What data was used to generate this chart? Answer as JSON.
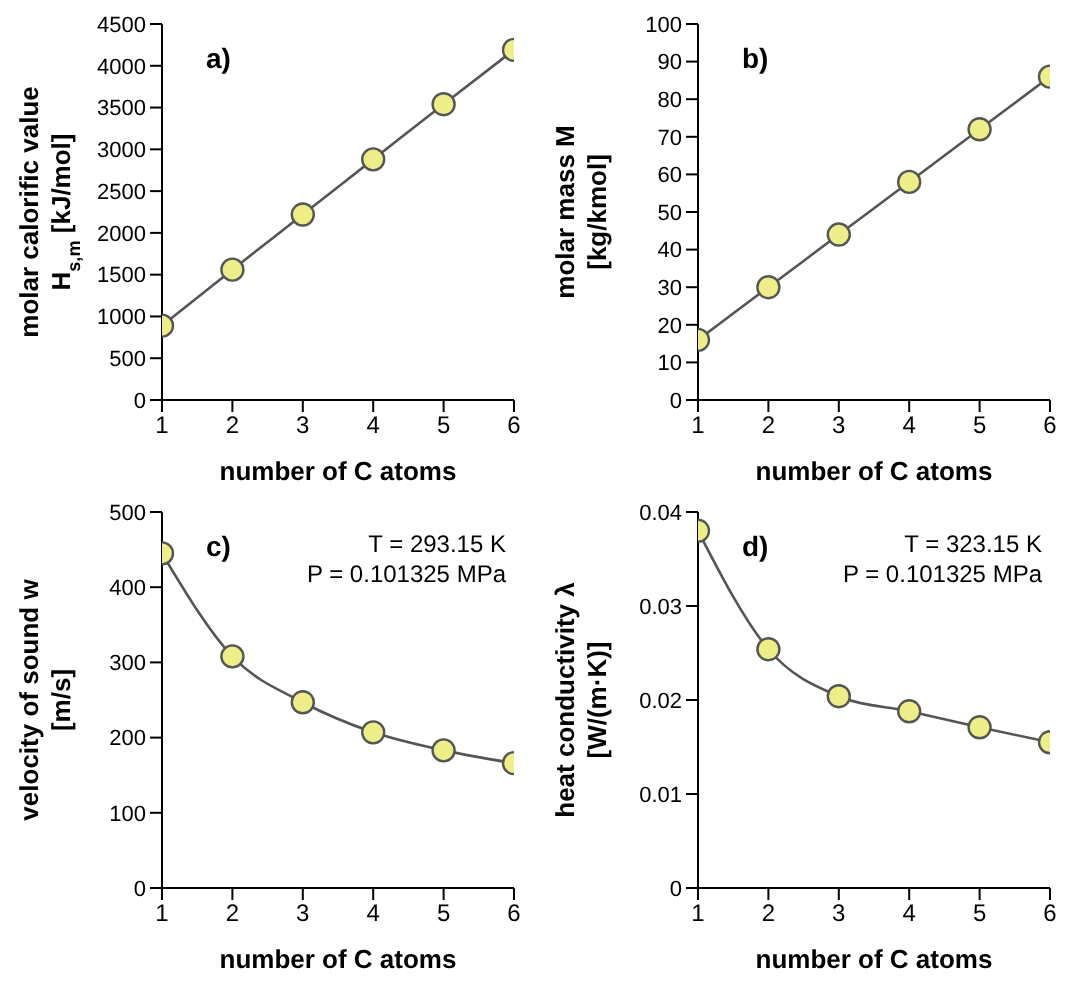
{
  "chart_data": [
    {
      "type": "scatter",
      "xlabel": "number of C atoms",
      "ylabel": "molar calorific value\nH$_{s,m}$ [kJ/mol]",
      "x": [
        1,
        2,
        3,
        4,
        5,
        6
      ],
      "xlim": [
        1,
        6
      ],
      "xticks": [
        1,
        2,
        3,
        4,
        5,
        6
      ],
      "ylim": [
        0,
        4500
      ],
      "yticks": [
        0,
        500,
        1000,
        1500,
        2000,
        2500,
        3000,
        3500,
        4000,
        4500
      ],
      "grid": false,
      "annotations": [
        "a)"
      ],
      "series": [
        {
          "type": "line",
          "marker": "none",
          "color": "#555555",
          "values": [
            890,
            1560,
            2220,
            2880,
            3540,
            4190
          ]
        },
        {
          "marker": "circle",
          "color": "#eeee88",
          "values": [
            890,
            1560,
            2220,
            2880,
            3540,
            4190
          ]
        }
      ]
    },
    {
      "type": "scatter",
      "xlabel": "number of C atoms",
      "ylabel": "molar mass M\n[kg/kmol]",
      "x": [
        1,
        2,
        3,
        4,
        5,
        6
      ],
      "xlim": [
        1,
        6
      ],
      "xticks": [
        1,
        2,
        3,
        4,
        5,
        6
      ],
      "ylim": [
        0,
        100
      ],
      "yticks": [
        0,
        10,
        20,
        30,
        40,
        50,
        60,
        70,
        80,
        90,
        100
      ],
      "grid": false,
      "annotations": [
        "b)"
      ],
      "series": [
        {
          "type": "line",
          "marker": "none",
          "color": "#555555",
          "values": [
            16,
            30,
            44,
            58,
            72,
            86
          ]
        },
        {
          "marker": "circle",
          "color": "#eeee88",
          "values": [
            16,
            30,
            44,
            58,
            72,
            86
          ]
        }
      ]
    },
    {
      "type": "scatter",
      "xlabel": "number of C atoms",
      "ylabel": "velocity of sound w\n[m/s]",
      "x": [
        1,
        2,
        3,
        4,
        5,
        6
      ],
      "xlim": [
        1,
        6
      ],
      "xticks": [
        1,
        2,
        3,
        4,
        5,
        6
      ],
      "ylim": [
        0,
        500
      ],
      "yticks": [
        0,
        100,
        200,
        300,
        400,
        500
      ],
      "grid": false,
      "annotations": [
        "c)",
        "T = 293.15 K",
        "P = 0.101325 MPa"
      ],
      "series": [
        {
          "type": "line",
          "marker": "none",
          "color": "#555555",
          "values": [
            445,
            308,
            247,
            207,
            183,
            166
          ]
        },
        {
          "marker": "circle",
          "color": "#eeee88",
          "values": [
            445,
            308,
            247,
            207,
            183,
            166
          ]
        }
      ]
    },
    {
      "type": "scatter",
      "xlabel": "number of C atoms",
      "ylabel": "heat conductivity λ\n[W/(m·K)]",
      "x": [
        1,
        2,
        3,
        4,
        5,
        6
      ],
      "xlim": [
        1,
        6
      ],
      "xticks": [
        1,
        2,
        3,
        4,
        5,
        6
      ],
      "ylim": [
        0,
        0.04
      ],
      "yticks": [
        0,
        0.01,
        0.02,
        0.03,
        0.04
      ],
      "grid": false,
      "annotations": [
        "d)",
        "T = 323.15 K",
        "P = 0.101325 MPa"
      ],
      "series": [
        {
          "type": "line",
          "marker": "none",
          "color": "#555555",
          "values": [
            0.038,
            0.0254,
            0.0204,
            0.0188,
            0.0171,
            0.0155
          ]
        },
        {
          "marker": "circle",
          "color": "#eeee88",
          "values": [
            0.038,
            0.0254,
            0.0204,
            0.0188,
            0.0171,
            0.0155
          ]
        }
      ]
    }
  ]
}
